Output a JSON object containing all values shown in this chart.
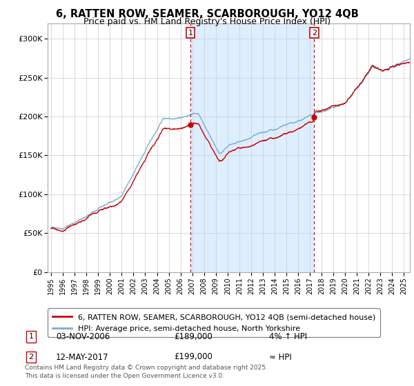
{
  "title": "6, RATTEN ROW, SEAMER, SCARBOROUGH, YO12 4QB",
  "subtitle": "Price paid vs. HM Land Registry's House Price Index (HPI)",
  "legend_red": "6, RATTEN ROW, SEAMER, SCARBOROUGH, YO12 4QB (semi-detached house)",
  "legend_blue": "HPI: Average price, semi-detached house, North Yorkshire",
  "annotation1_label": "1",
  "annotation1_date": "03-NOV-2006",
  "annotation1_price": "£189,000",
  "annotation1_hpi": "4% ↑ HPI",
  "annotation2_label": "2",
  "annotation2_date": "12-MAY-2017",
  "annotation2_price": "£199,000",
  "annotation2_hpi": "≈ HPI",
  "footer": "Contains HM Land Registry data © Crown copyright and database right 2025.\nThis data is licensed under the Open Government Licence v3.0.",
  "sale1_year": 2006.84,
  "sale2_year": 2017.37,
  "sale1_price": 189000,
  "sale2_price": 199000,
  "color_red": "#cc0000",
  "color_blue": "#7aadd4",
  "color_shade": "#ddeeff",
  "color_vline": "#cc0000",
  "color_grid": "#cccccc",
  "color_bg": "#ffffff",
  "ylim_min": 0,
  "ylim_max": 320000,
  "start_year": 1995,
  "end_year": 2025.5
}
